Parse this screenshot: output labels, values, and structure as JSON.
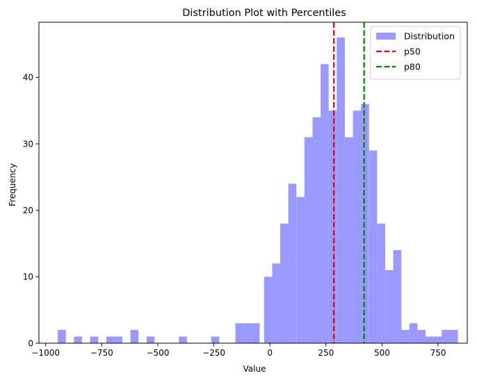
{
  "chart_data": {
    "type": "histogram",
    "title": "Distribution Plot with Percentiles",
    "xlabel": "Value",
    "ylabel": "Frequency",
    "xlim": [
      -1030,
      880
    ],
    "ylim": [
      0,
      48.3
    ],
    "bin_width": 36,
    "bins": [
      {
        "x0": -946,
        "x1": -910,
        "count": 2
      },
      {
        "x0": -874,
        "x1": -838,
        "count": 1
      },
      {
        "x0": -802,
        "x1": -766,
        "count": 1
      },
      {
        "x0": -730,
        "x1": -694,
        "count": 1
      },
      {
        "x0": -694,
        "x1": -658,
        "count": 1
      },
      {
        "x0": -622,
        "x1": -586,
        "count": 2
      },
      {
        "x0": -550,
        "x1": -514,
        "count": 1
      },
      {
        "x0": -406,
        "x1": -370,
        "count": 1
      },
      {
        "x0": -262,
        "x1": -226,
        "count": 1
      },
      {
        "x0": -154,
        "x1": -118,
        "count": 3
      },
      {
        "x0": -118,
        "x1": -82,
        "count": 3
      },
      {
        "x0": -82,
        "x1": -46,
        "count": 3
      },
      {
        "x0": -26,
        "x1": 10,
        "count": 10
      },
      {
        "x0": 10,
        "x1": 46,
        "count": 12
      },
      {
        "x0": 46,
        "x1": 82,
        "count": 18
      },
      {
        "x0": 82,
        "x1": 118,
        "count": 24
      },
      {
        "x0": 118,
        "x1": 154,
        "count": 22
      },
      {
        "x0": 154,
        "x1": 190,
        "count": 31
      },
      {
        "x0": 190,
        "x1": 226,
        "count": 34
      },
      {
        "x0": 226,
        "x1": 262,
        "count": 42
      },
      {
        "x0": 262,
        "x1": 298,
        "count": 35
      },
      {
        "x0": 298,
        "x1": 334,
        "count": 46
      },
      {
        "x0": 334,
        "x1": 370,
        "count": 31
      },
      {
        "x0": 370,
        "x1": 406,
        "count": 35
      },
      {
        "x0": 406,
        "x1": 442,
        "count": 36
      },
      {
        "x0": 442,
        "x1": 478,
        "count": 29
      },
      {
        "x0": 478,
        "x1": 514,
        "count": 18
      },
      {
        "x0": 514,
        "x1": 550,
        "count": 11
      },
      {
        "x0": 550,
        "x1": 586,
        "count": 14
      },
      {
        "x0": 586,
        "x1": 622,
        "count": 2
      },
      {
        "x0": 622,
        "x1": 658,
        "count": 3
      },
      {
        "x0": 658,
        "x1": 694,
        "count": 2
      },
      {
        "x0": 694,
        "x1": 730,
        "count": 1
      },
      {
        "x0": 730,
        "x1": 766,
        "count": 1
      },
      {
        "x0": 766,
        "x1": 802,
        "count": 2
      },
      {
        "x0": 802,
        "x1": 838,
        "count": 2
      }
    ],
    "percentiles": [
      {
        "name": "p50",
        "value": 285,
        "color": "#ff0000"
      },
      {
        "name": "p80",
        "value": 420,
        "color": "#008000"
      }
    ],
    "xticks": [
      -1000,
      -750,
      -500,
      -250,
      0,
      250,
      500,
      750
    ],
    "xtick_labels": [
      "−1000",
      "−750",
      "−500",
      "−250",
      "0",
      "250",
      "500",
      "750"
    ],
    "yticks": [
      0,
      10,
      20,
      30,
      40
    ],
    "ytick_labels": [
      "0",
      "10",
      "20",
      "30",
      "40"
    ],
    "legend": {
      "placement": "top-right",
      "entries": [
        {
          "label": "Distribution",
          "kind": "patch",
          "color": "#9999ff"
        },
        {
          "label": "p50",
          "kind": "dashed-line",
          "color": "#ff0000"
        },
        {
          "label": "p80",
          "kind": "dashed-line",
          "color": "#008000"
        }
      ]
    },
    "bar_color": "#9999ff",
    "grid": false
  }
}
